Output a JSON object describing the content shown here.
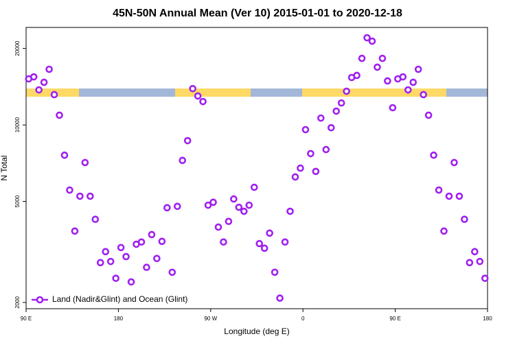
{
  "chart_data": {
    "type": "scatter",
    "title": "45N-50N Annual Mean (Ver 10)   2015-01-01 to 2020-12-18",
    "x_label": "Longitude (deg E)",
    "y_label": "N Total",
    "x": [
      92.5,
      97.5,
      102.5,
      107.5,
      112.5,
      117.5,
      122.5,
      127.5,
      132.5,
      137.5,
      142.5,
      147.5,
      152.5,
      157.5,
      162.5,
      167.5,
      172.5,
      177.5,
      182.5,
      187.5,
      192.5,
      197.5,
      202.5,
      207.5,
      212.5,
      217.5,
      222.5,
      227.5,
      232.5,
      237.5,
      242.5,
      247.5,
      252.5,
      257.5,
      262.5,
      267.5,
      272.5,
      277.5,
      282.5,
      287.5,
      292.5,
      297.5,
      302.5,
      307.5,
      312.5,
      317.5,
      322.5,
      327.5,
      332.5,
      337.5,
      342.5,
      347.5,
      352.5,
      357.5,
      362.5,
      367.5,
      372.5,
      377.5,
      382.5,
      387.5,
      392.5,
      397.5,
      402.5,
      407.5,
      412.5,
      417.5,
      422.5,
      427.5,
      432.5,
      437.5,
      442.5,
      447.5,
      452.5,
      457.5,
      462.5,
      467.5,
      472.5,
      477.5,
      482.5,
      487.5,
      492.5,
      497.5,
      502.5,
      507.5,
      512.5,
      517.5,
      522.5,
      527.5,
      532.5,
      537.5
    ],
    "series": [
      {
        "name": "Land (Nadir&Glint) and Ocean (Glint)",
        "color": "#a020f0",
        "values": [
          15180,
          15460,
          13740,
          14720,
          16560,
          13160,
          10920,
          7600,
          5540,
          3820,
          5240,
          7110,
          5240,
          4250,
          2870,
          3170,
          2900,
          2490,
          3290,
          3030,
          2410,
          3390,
          3460,
          2750,
          3700,
          2980,
          3480,
          4720,
          2630,
          4780,
          7250,
          8670,
          13900,
          13000,
          12360,
          4830,
          4960,
          3960,
          3460,
          4170,
          5110,
          4740,
          4570,
          4830,
          5680,
          3410,
          3270,
          3750,
          2630,
          2080,
          3460,
          4570,
          6240,
          6760,
          9580,
          7710,
          6560,
          10640,
          8000,
          9750,
          11330,
          12200,
          13570,
          15370,
          15660,
          18280,
          22040,
          21370,
          16880,
          18280,
          14900,
          11690,
          15180,
          15460,
          13740,
          14720,
          16560,
          13160,
          10920,
          7600,
          5540,
          3820,
          5240,
          7110,
          5240,
          4250,
          2870,
          3170,
          2900,
          2490
        ]
      }
    ],
    "xlim": [
      90,
      540
    ],
    "xticks": [
      {
        "value": 90,
        "label": "90 E"
      },
      {
        "value": 180,
        "label": "180"
      },
      {
        "value": 270,
        "label": "90 W"
      },
      {
        "value": 360,
        "label": "0"
      },
      {
        "value": 450,
        "label": "90 E"
      },
      {
        "value": 540,
        "label": "180"
      }
    ],
    "ylim": [
      1890,
      24200
    ],
    "yticks": [
      2000,
      5000,
      10000,
      20000
    ],
    "ylog": true,
    "legend": "bottom-left"
  }
}
